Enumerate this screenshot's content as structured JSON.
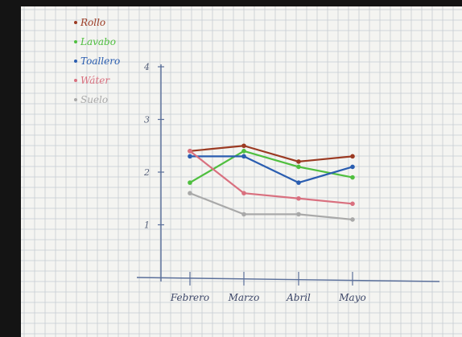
{
  "chart_data": {
    "type": "line",
    "title": "",
    "xlabel": "",
    "ylabel": "",
    "categories": [
      "Febrero",
      "Marzo",
      "Abril",
      "Mayo"
    ],
    "y_ticks": [
      "1",
      "2",
      "3",
      "4"
    ],
    "ylim": [
      0,
      4
    ],
    "grid": true,
    "legend_position": "top-left",
    "series": [
      {
        "name": "Rollo",
        "color": "#9b3a22",
        "values": [
          2.4,
          2.5,
          2.2,
          2.3
        ]
      },
      {
        "name": "Lavabo",
        "color": "#4fbf3f",
        "values": [
          1.8,
          2.4,
          2.1,
          1.9
        ]
      },
      {
        "name": "Toallero",
        "color": "#2a5db0",
        "values": [
          2.3,
          2.3,
          1.8,
          2.1
        ]
      },
      {
        "name": "Wáter",
        "color": "#d9707f",
        "values": [
          2.4,
          1.6,
          1.5,
          1.4
        ]
      },
      {
        "name": "Suelo",
        "color": "#a9a9a9",
        "values": [
          1.6,
          1.2,
          1.2,
          1.1
        ]
      }
    ]
  }
}
